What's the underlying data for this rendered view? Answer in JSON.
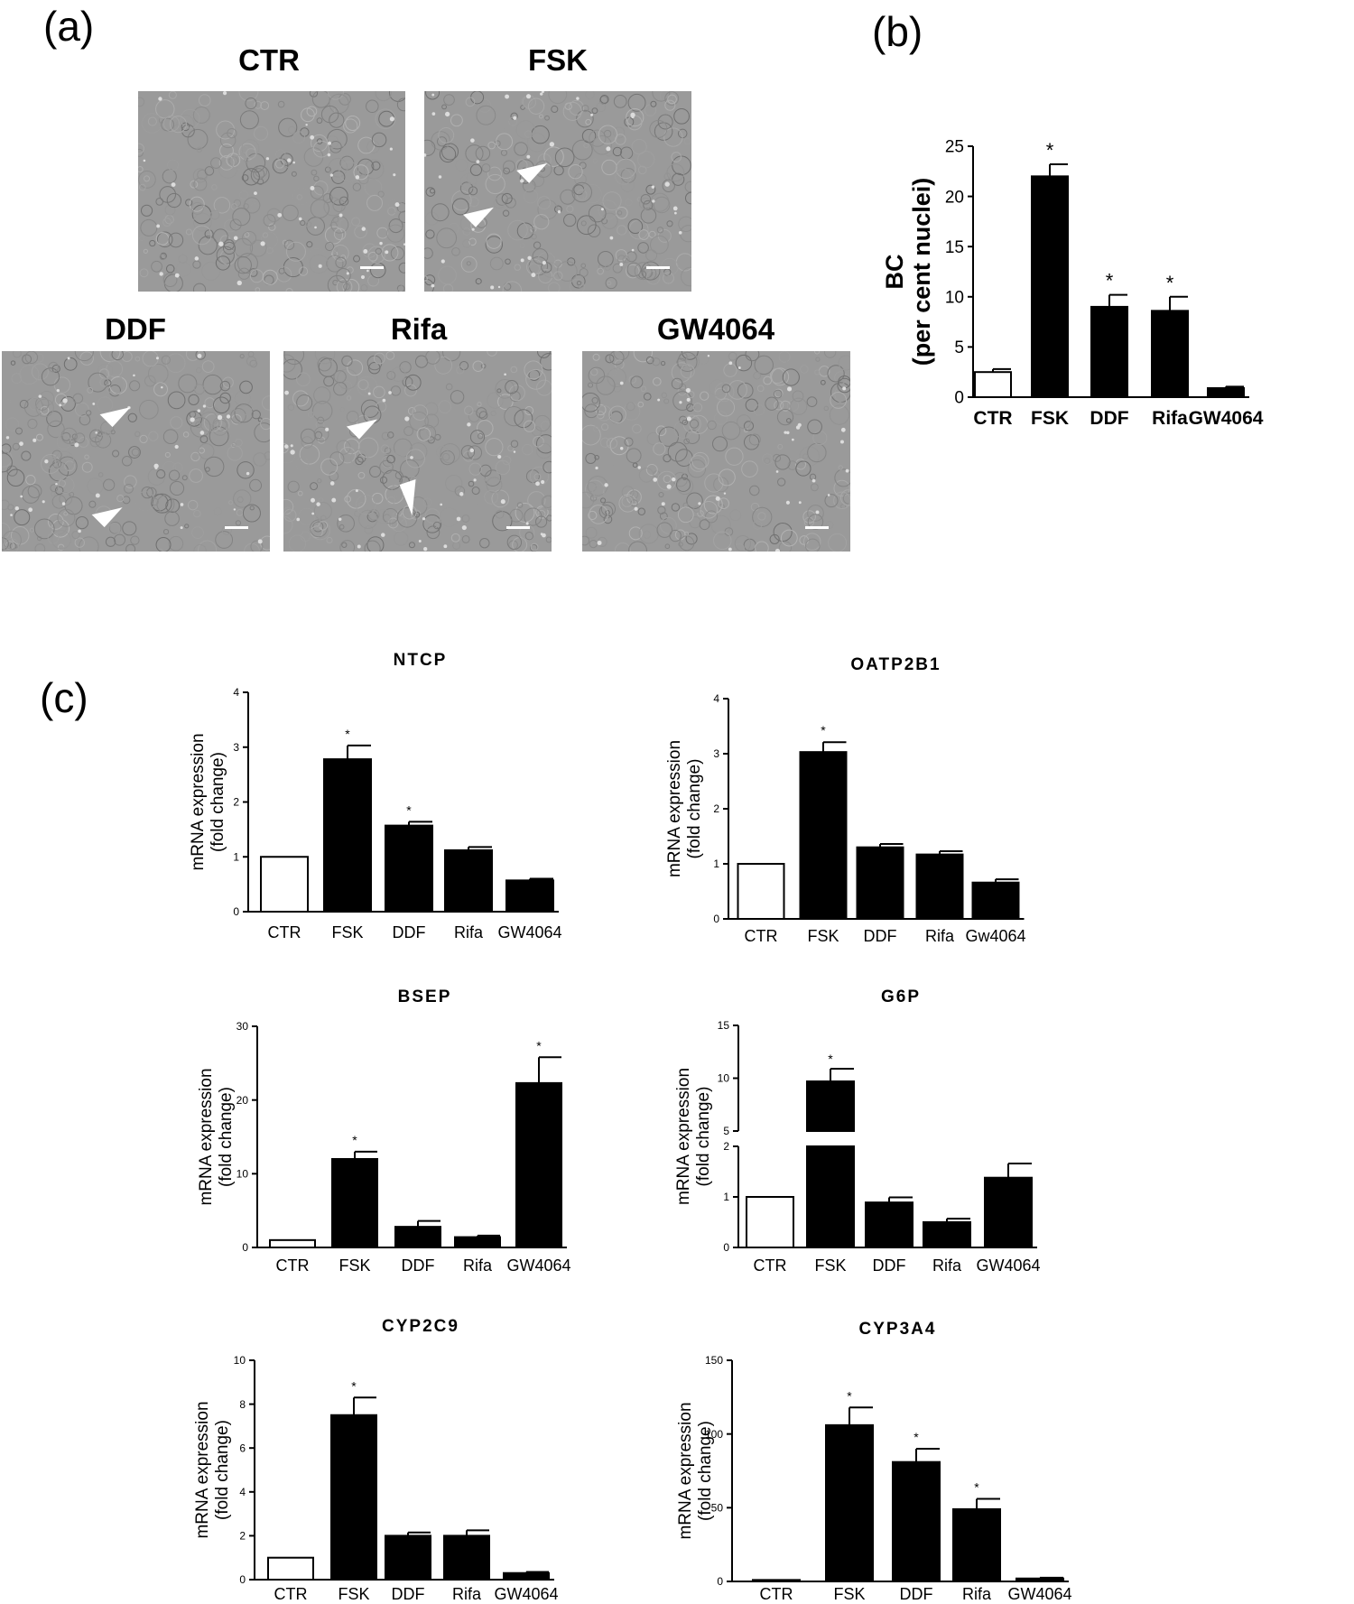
{
  "panel_labels": {
    "a": "(a)",
    "b": "(b)",
    "c": "(c)"
  },
  "micrographs": [
    {
      "label": "CTR",
      "arrowheads": 0,
      "scale_bar": true
    },
    {
      "label": "FSK",
      "arrowheads": 2,
      "scale_bar": true
    },
    {
      "label": "DDF",
      "arrowheads": 2,
      "scale_bar": true
    },
    {
      "label": "Rifa",
      "arrowheads": 2,
      "scale_bar": true
    },
    {
      "label": "GW4064",
      "arrowheads": 0,
      "scale_bar": true
    }
  ],
  "colors": {
    "control_bar": "#ffffff",
    "treated_bar": "#000000",
    "micrograph_base": "#9a9a9a",
    "arrowhead": "#ffffff"
  },
  "chart_data": [
    {
      "id": "b",
      "type": "bar",
      "title": "",
      "ylabel_lines": [
        "BC",
        "(per cent nuclei)"
      ],
      "categories": [
        "CTR",
        "FSK",
        "DDF",
        "Rifa",
        "GW4064"
      ],
      "values": [
        2.5,
        22,
        9,
        8.6,
        0.9
      ],
      "errors": [
        0.3,
        1.2,
        1.2,
        1.4,
        0.15
      ],
      "significant": [
        false,
        true,
        true,
        true,
        false
      ],
      "ylim": [
        0,
        25
      ],
      "ticks": [
        0,
        5,
        10,
        15,
        20,
        25
      ]
    },
    {
      "id": "ntcp",
      "type": "bar",
      "title": "NTCP",
      "ylabel_lines": [
        "mRNA expression",
        "(fold change)"
      ],
      "categories": [
        "CTR",
        "FSK",
        "DDF",
        "Rifa",
        "GW4064"
      ],
      "values": [
        1,
        2.78,
        1.57,
        1.12,
        0.57
      ],
      "errors": [
        0,
        0.25,
        0.07,
        0.06,
        0.03
      ],
      "significant": [
        false,
        true,
        true,
        false,
        false
      ],
      "ylim": [
        0,
        4
      ],
      "ticks": [
        0,
        1,
        2,
        3,
        4
      ]
    },
    {
      "id": "oatp2b1",
      "type": "bar",
      "title": "OATP2B1",
      "ylabel_lines": [
        "mRNA expression",
        "(fold change)"
      ],
      "categories": [
        "CTR",
        "FSK",
        "DDF",
        "Rifa",
        "Gw4064"
      ],
      "values": [
        1,
        3.03,
        1.3,
        1.17,
        0.66
      ],
      "errors": [
        0,
        0.18,
        0.06,
        0.06,
        0.06
      ],
      "significant": [
        false,
        true,
        false,
        false,
        false
      ],
      "ylim": [
        0,
        4
      ],
      "ticks": [
        0,
        1,
        2,
        3,
        4
      ]
    },
    {
      "id": "bsep",
      "type": "bar",
      "title": "BSEP",
      "ylabel_lines": [
        "mRNA expression",
        "(fold change)"
      ],
      "categories": [
        "CTR",
        "FSK",
        "DDF",
        "Rifa",
        "GW4064"
      ],
      "values": [
        1,
        12,
        2.8,
        1.4,
        22.3
      ],
      "errors": [
        0,
        1,
        0.8,
        0.2,
        3.5
      ],
      "significant": [
        false,
        true,
        false,
        false,
        true
      ],
      "ylim": [
        0,
        30
      ],
      "ticks": [
        0,
        10,
        20,
        30
      ]
    },
    {
      "id": "g6p",
      "type": "bar",
      "title": "G6P",
      "broken_axis": true,
      "ylabel_lines": [
        "mRNA expression",
        "(fold change)"
      ],
      "categories": [
        "CTR",
        "FSK",
        "DDF",
        "Rifa",
        "GW4064"
      ],
      "values": [
        1,
        9.7,
        0.89,
        0.5,
        1.38
      ],
      "errors": [
        0,
        1.2,
        0.1,
        0.07,
        0.28
      ],
      "significant": [
        false,
        true,
        false,
        false,
        false
      ],
      "lower_range": [
        0,
        2
      ],
      "lower_ticks": [
        0,
        1,
        2
      ],
      "upper_range": [
        5,
        15
      ],
      "upper_ticks": [
        5,
        10,
        15
      ]
    },
    {
      "id": "cyp2c9",
      "type": "bar",
      "title": "CYP2C9",
      "ylabel_lines": [
        "mRNA expression",
        "(fold change)"
      ],
      "categories": [
        "CTR",
        "FSK",
        "DDF",
        "Rifa",
        "GW4064"
      ],
      "values": [
        1,
        7.5,
        2,
        2,
        0.3
      ],
      "errors": [
        0,
        0.8,
        0.15,
        0.25,
        0.05
      ],
      "significant": [
        false,
        true,
        false,
        false,
        false
      ],
      "ylim": [
        0,
        10
      ],
      "ticks": [
        0,
        2,
        4,
        6,
        8,
        10
      ]
    },
    {
      "id": "cyp3a4",
      "type": "bar",
      "title": "CYP3A4",
      "ylabel_lines": [
        "mRNA expression",
        "(fold change)"
      ],
      "categories": [
        "CTR",
        "FSK",
        "DDF",
        "Rifa",
        "GW4064"
      ],
      "values": [
        1,
        106,
        81,
        49,
        2
      ],
      "errors": [
        0,
        12,
        9,
        7,
        0.5
      ],
      "significant": [
        false,
        true,
        true,
        true,
        false
      ],
      "ylim": [
        0,
        150
      ],
      "ticks": [
        0,
        50,
        100,
        150
      ]
    }
  ]
}
